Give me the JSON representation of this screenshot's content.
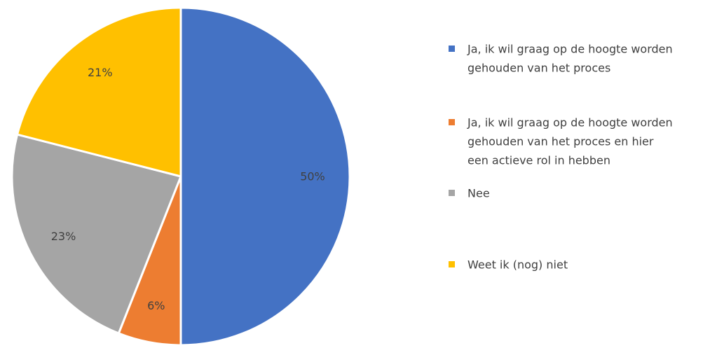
{
  "chart_data": {
    "type": "pie",
    "categories": [
      "Ja, ik wil graag op de hoogte worden gehouden van het proces",
      "Ja, ik wil graag op de hoogte worden gehouden van het proces en hier een actieve rol in hebben",
      "Nee",
      "Weet ik (nog) niet"
    ],
    "values": [
      50,
      6,
      23,
      21
    ],
    "data_labels": [
      "50%",
      "6%",
      "23%",
      "21%"
    ],
    "colors": [
      "#4472C4",
      "#ED7D31",
      "#A5A5A5",
      "#FFC000"
    ],
    "legend": {
      "position": "right",
      "entries": [
        {
          "lines": [
            "Ja, ik wil graag op de hoogte worden",
            "gehouden van het proces"
          ]
        },
        {
          "lines": [
            "Ja, ik wil graag op de hoogte worden",
            "gehouden van het proces en hier",
            "een actieve rol in hebben"
          ]
        },
        {
          "lines": [
            "Nee"
          ]
        },
        {
          "lines": [
            "Weet ik (nog) niet"
          ]
        }
      ]
    },
    "start": "top",
    "direction": "clockwise"
  }
}
